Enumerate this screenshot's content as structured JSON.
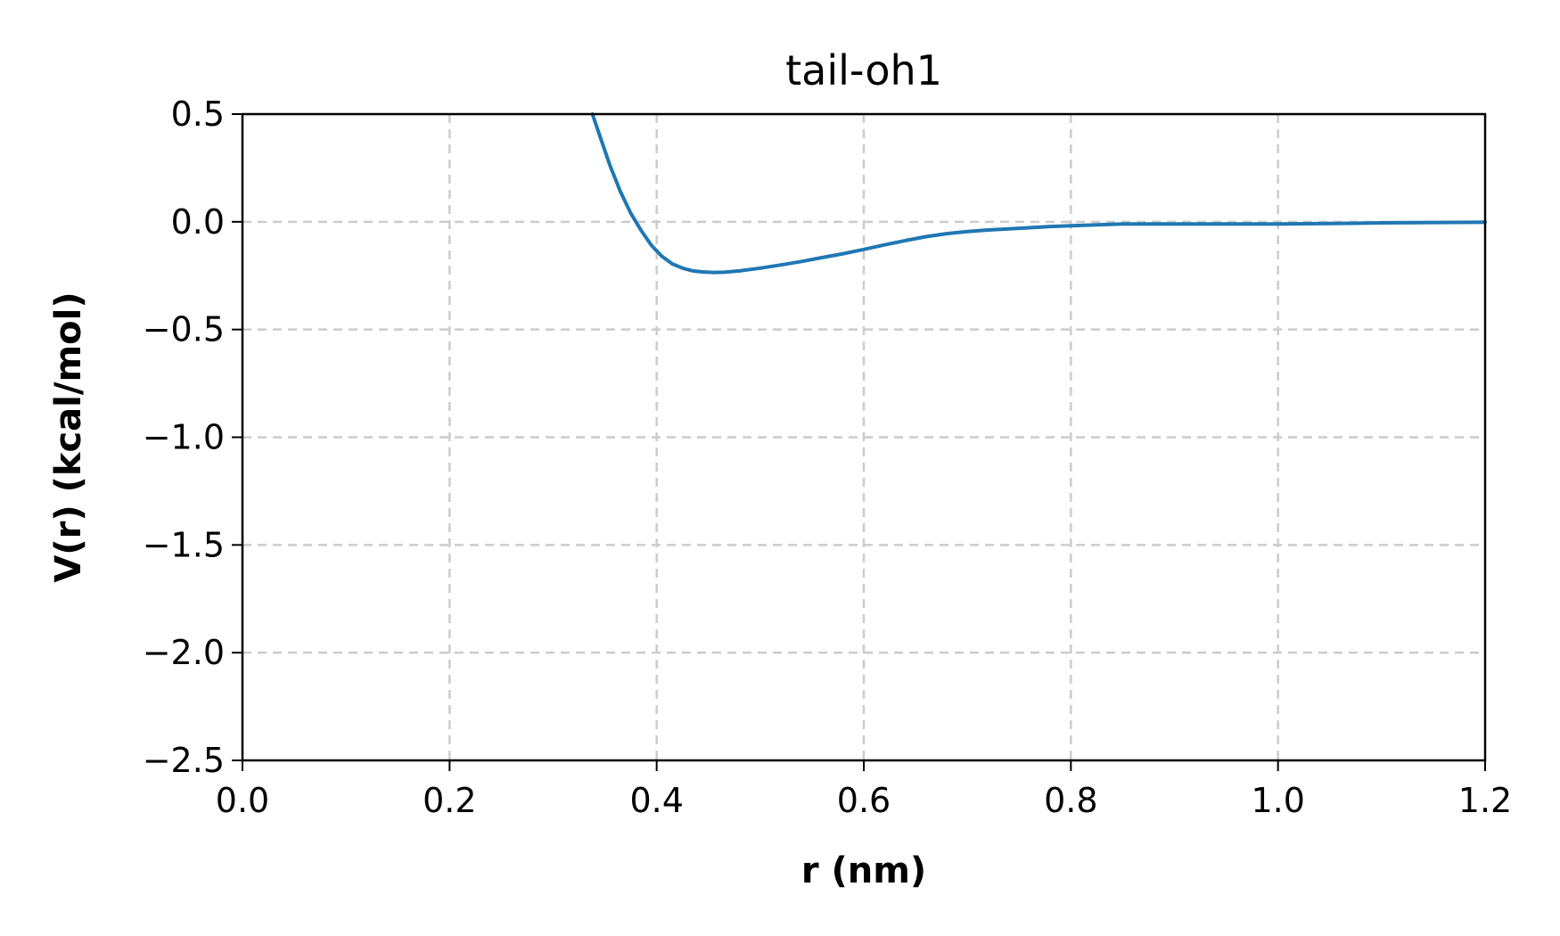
{
  "chart_data": {
    "type": "line",
    "title": "tail-oh1",
    "xlabel": "r (nm)",
    "ylabel": "V(r) (kcal/mol)",
    "xlim": [
      0.0,
      1.2
    ],
    "ylim": [
      -2.5,
      0.5
    ],
    "xticks": [
      0.0,
      0.2,
      0.4,
      0.6,
      0.8,
      1.0,
      1.2
    ],
    "yticks": [
      0.5,
      0.0,
      -0.5,
      -1.0,
      -1.5,
      -2.0,
      -2.5
    ],
    "xtick_labels": [
      "0.0",
      "0.2",
      "0.4",
      "0.6",
      "0.8",
      "1.0",
      "1.2"
    ],
    "ytick_labels": [
      "0.5",
      "0.0",
      "−0.5",
      "−1.0",
      "−1.5",
      "−2.0",
      "−2.5"
    ],
    "grid": true,
    "series": [
      {
        "color": "#1f77b4",
        "x": [
          0.338,
          0.345,
          0.355,
          0.365,
          0.375,
          0.385,
          0.395,
          0.405,
          0.415,
          0.425,
          0.435,
          0.445,
          0.455,
          0.465,
          0.48,
          0.5,
          0.52,
          0.54,
          0.56,
          0.58,
          0.6,
          0.62,
          0.64,
          0.66,
          0.68,
          0.7,
          0.72,
          0.75,
          0.78,
          0.8,
          0.85,
          0.9,
          0.95,
          1.0,
          1.05,
          1.1,
          1.15,
          1.2
        ],
        "y": [
          0.5,
          0.4,
          0.26,
          0.14,
          0.04,
          -0.04,
          -0.11,
          -0.16,
          -0.195,
          -0.215,
          -0.228,
          -0.233,
          -0.235,
          -0.234,
          -0.228,
          -0.215,
          -0.2,
          -0.184,
          -0.166,
          -0.148,
          -0.128,
          -0.107,
          -0.087,
          -0.069,
          -0.055,
          -0.045,
          -0.038,
          -0.03,
          -0.022,
          -0.018,
          -0.01,
          -0.01,
          -0.01,
          -0.01,
          -0.008,
          -0.005,
          -0.003,
          -0.002
        ]
      }
    ]
  }
}
